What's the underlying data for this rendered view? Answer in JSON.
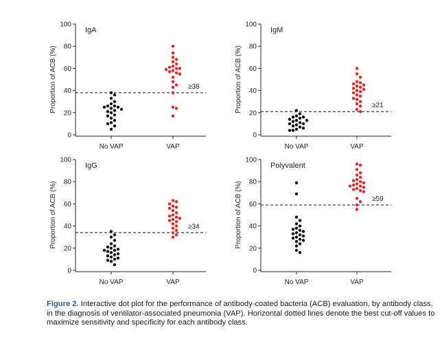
{
  "chart_data": [
    {
      "type": "scatter",
      "panel_label": "IgA",
      "ylabel": "Proportion of ACB (%)",
      "ylim": [
        0,
        100
      ],
      "yticks": [
        0,
        20,
        40,
        60,
        80,
        100
      ],
      "categories": [
        "No VAP",
        "VAP"
      ],
      "cutoff": 38,
      "cutoff_label": "≥38",
      "series": [
        {
          "color": "#111111",
          "values": [
            38,
            36,
            33,
            30,
            28,
            26,
            26,
            25,
            25,
            24,
            23,
            22,
            21,
            20,
            18,
            17,
            15,
            13,
            11,
            10,
            8,
            5
          ]
        },
        {
          "color": "#ee2222",
          "values": [
            80,
            74,
            70,
            68,
            66,
            64,
            62,
            61,
            60,
            60,
            59,
            58,
            57,
            56,
            55,
            52,
            48,
            45,
            43,
            38,
            25,
            24,
            17
          ]
        }
      ]
    },
    {
      "type": "scatter",
      "panel_label": "IgM",
      "ylabel": "Proportion of ACB (%)",
      "ylim": [
        0,
        100
      ],
      "yticks": [
        0,
        20,
        40,
        60,
        80,
        100
      ],
      "categories": [
        "No VAP",
        "VAP"
      ],
      "cutoff": 21,
      "cutoff_label": "≥21",
      "series": [
        {
          "color": "#111111",
          "values": [
            22,
            19,
            17,
            16,
            16,
            15,
            14,
            13,
            13,
            12,
            11,
            10,
            10,
            9,
            8,
            7,
            6,
            5,
            4,
            4
          ]
        },
        {
          "color": "#ee2222",
          "values": [
            60,
            55,
            52,
            48,
            47,
            46,
            45,
            44,
            43,
            42,
            41,
            40,
            39,
            38,
            36,
            35,
            33,
            32,
            30,
            28,
            26,
            23,
            21
          ]
        }
      ]
    },
    {
      "type": "scatter",
      "panel_label": "IgG",
      "ylabel": "Proportion of ACB (%)",
      "ylim": [
        0,
        100
      ],
      "yticks": [
        0,
        20,
        40,
        60,
        80,
        100
      ],
      "categories": [
        "No VAP",
        "VAP"
      ],
      "cutoff": 34,
      "cutoff_label": "≥34",
      "series": [
        {
          "color": "#111111",
          "values": [
            35,
            32,
            30,
            27,
            24,
            22,
            21,
            20,
            19,
            18,
            18,
            17,
            16,
            15,
            14,
            13,
            12,
            11,
            10,
            9,
            8,
            5
          ]
        },
        {
          "color": "#ee2222",
          "values": [
            63,
            62,
            60,
            58,
            57,
            56,
            54,
            52,
            50,
            49,
            48,
            47,
            46,
            45,
            44,
            42,
            40,
            38,
            36,
            34,
            32,
            30
          ]
        }
      ]
    },
    {
      "type": "scatter",
      "panel_label": "Polyvalent",
      "ylabel": "Proportion of ACB (%)",
      "ylim": [
        0,
        100
      ],
      "yticks": [
        0,
        20,
        40,
        60,
        80,
        100
      ],
      "categories": [
        "No VAP",
        "VAP"
      ],
      "cutoff": 59,
      "cutoff_label": "≥59",
      "series": [
        {
          "color": "#111111",
          "values": [
            79,
            69,
            48,
            45,
            42,
            40,
            38,
            37,
            36,
            35,
            34,
            33,
            32,
            31,
            30,
            29,
            28,
            27,
            26,
            24,
            22,
            18,
            16
          ]
        },
        {
          "color": "#ee2222",
          "values": [
            96,
            95,
            91,
            88,
            86,
            84,
            82,
            81,
            80,
            79,
            78,
            77,
            76,
            76,
            75,
            74,
            73,
            72,
            71,
            65,
            62,
            59,
            55
          ]
        }
      ]
    }
  ],
  "caption": {
    "label": "Figure 2.",
    "text": " Interactive dot plot for the performance of antibody-coated bacteria (ACB) evaluation, by antibody class, in the diagnosis of ventilator-associated pneumonia (VAP). Horizontal dotted lines denote the best cut-off values to maximize sensitivity and specificity for each antibody class."
  }
}
